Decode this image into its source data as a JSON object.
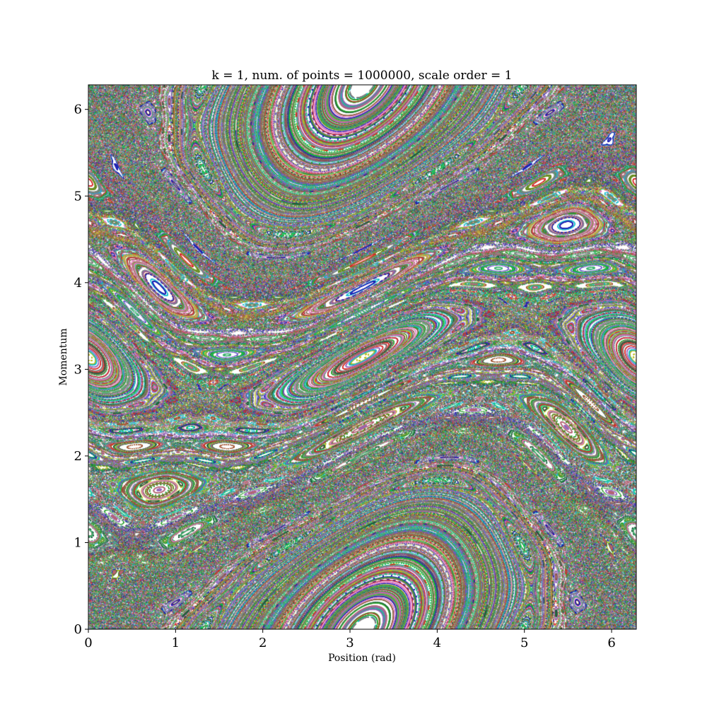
{
  "chart_data": {
    "type": "scatter",
    "title": "k = 1, num. of  points = 1000000, scale order = 1",
    "xlabel": "Position (rad)",
    "ylabel": "Momentum",
    "xlim": [
      0,
      6.2832
    ],
    "ylim": [
      0,
      6.2832
    ],
    "xticks": [
      "0",
      "1",
      "2",
      "3",
      "4",
      "5",
      "6"
    ],
    "yticks": [
      "0",
      "1",
      "2",
      "3",
      "4",
      "5",
      "6"
    ],
    "grid": false,
    "legend": "none",
    "map": "standard map",
    "k": 1,
    "num_points": 1000000,
    "scale_order": 1,
    "background_color": "#ffffff",
    "orbit_colors": [
      "#1f1fb4",
      "#2ca02c",
      "#d62728",
      "#9467bd",
      "#8c564b",
      "#e377c2",
      "#7f7f7f",
      "#bcbd22",
      "#17becf",
      "#1b5e3b",
      "#6b8e23",
      "#a0522d",
      "#3cb371",
      "#6a5acd",
      "#00c853",
      "#b56576"
    ]
  }
}
